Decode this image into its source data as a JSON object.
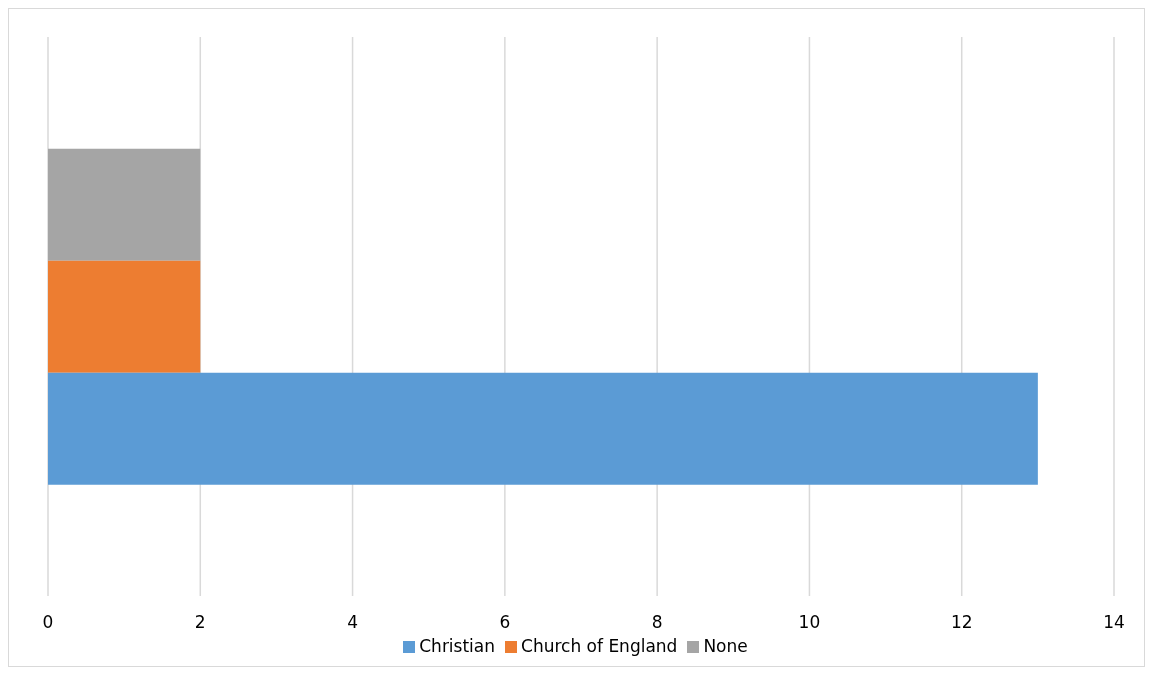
{
  "chart_data": {
    "type": "bar",
    "orientation": "horizontal",
    "categories": [
      null
    ],
    "series": [
      {
        "name": "None",
        "color": "#a5a5a5",
        "values": [
          2
        ]
      },
      {
        "name": "Church of England",
        "color": "#ed7d31",
        "values": [
          2
        ]
      },
      {
        "name": "Christian",
        "color": "#5b9bd5",
        "values": [
          13
        ]
      }
    ],
    "xlim": [
      0,
      14
    ],
    "xticks": [
      0,
      2,
      4,
      6,
      8,
      10,
      12,
      14
    ],
    "grid": "x",
    "legend": "bottom"
  }
}
